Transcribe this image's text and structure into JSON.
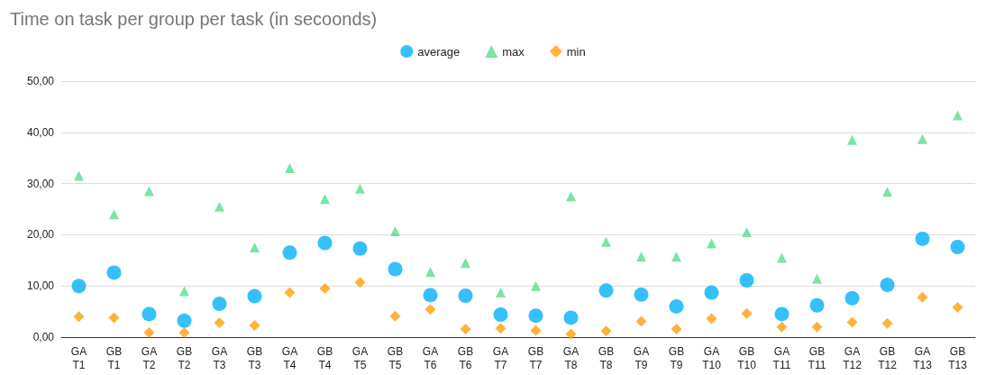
{
  "chart_data": {
    "type": "scatter",
    "title": "Time on task per group per task (in secoonds)",
    "categories": [
      "GA\nT1",
      "GB\nT1",
      "GA\nT2",
      "GB\nT2",
      "GA\nT3",
      "GB\nT3",
      "GA\nT4",
      "GB\nT4",
      "GA\nT5",
      "GB\nT5",
      "GA\nT6",
      "GB\nT6",
      "GA\nT7",
      "GB\nT7",
      "GA\nT8",
      "GB\nT8",
      "GA\nT9",
      "GB\nT9",
      "GA\nT10",
      "GB\nT10",
      "GA\nT11",
      "GB\nT11",
      "GA\nT12",
      "GB\nT12",
      "GA\nT13",
      "GB\nT13"
    ],
    "series": [
      {
        "name": "average",
        "color": "#03b0fa",
        "marker": "circle",
        "values": [
          10,
          12.6,
          4.5,
          3.2,
          6.5,
          8,
          16.5,
          18.4,
          17.3,
          13.3,
          8.2,
          8.1,
          4.4,
          4.2,
          3.8,
          9.1,
          8.3,
          6,
          8.7,
          11.1,
          4.5,
          6.2,
          7.6,
          10.2,
          19.2,
          17.6
        ]
      },
      {
        "name": "max",
        "color": "#57dd8d",
        "marker": "triangle",
        "values": [
          31.5,
          24,
          28.5,
          9,
          25.5,
          17.5,
          33,
          27,
          29,
          20.7,
          12.7,
          14.5,
          8.7,
          10,
          27.5,
          18.6,
          15.7,
          15.7,
          18.3,
          20.5,
          15.5,
          11.4,
          38.5,
          28.4,
          38.7,
          43.3
        ]
      },
      {
        "name": "min",
        "color": "#ff9f0a",
        "marker": "diamond",
        "values": [
          4,
          3.8,
          0.9,
          0.9,
          2.8,
          2.3,
          8.7,
          9.5,
          10.7,
          4.1,
          5.4,
          1.6,
          1.7,
          1.3,
          0.6,
          1.2,
          3.1,
          1.6,
          3.6,
          4.6,
          2,
          2,
          2.9,
          2.7,
          7.8,
          5.8
        ]
      }
    ],
    "ylim": [
      0,
      50
    ],
    "yticks": [
      {
        "value": 0,
        "label": "0,00"
      },
      {
        "value": 10,
        "label": "10,00"
      },
      {
        "value": 20,
        "label": "20,00"
      },
      {
        "value": 30,
        "label": "30,00"
      },
      {
        "value": 40,
        "label": "40,00"
      },
      {
        "value": 50,
        "label": "50,00"
      }
    ],
    "grid": "y",
    "legend": "top"
  }
}
